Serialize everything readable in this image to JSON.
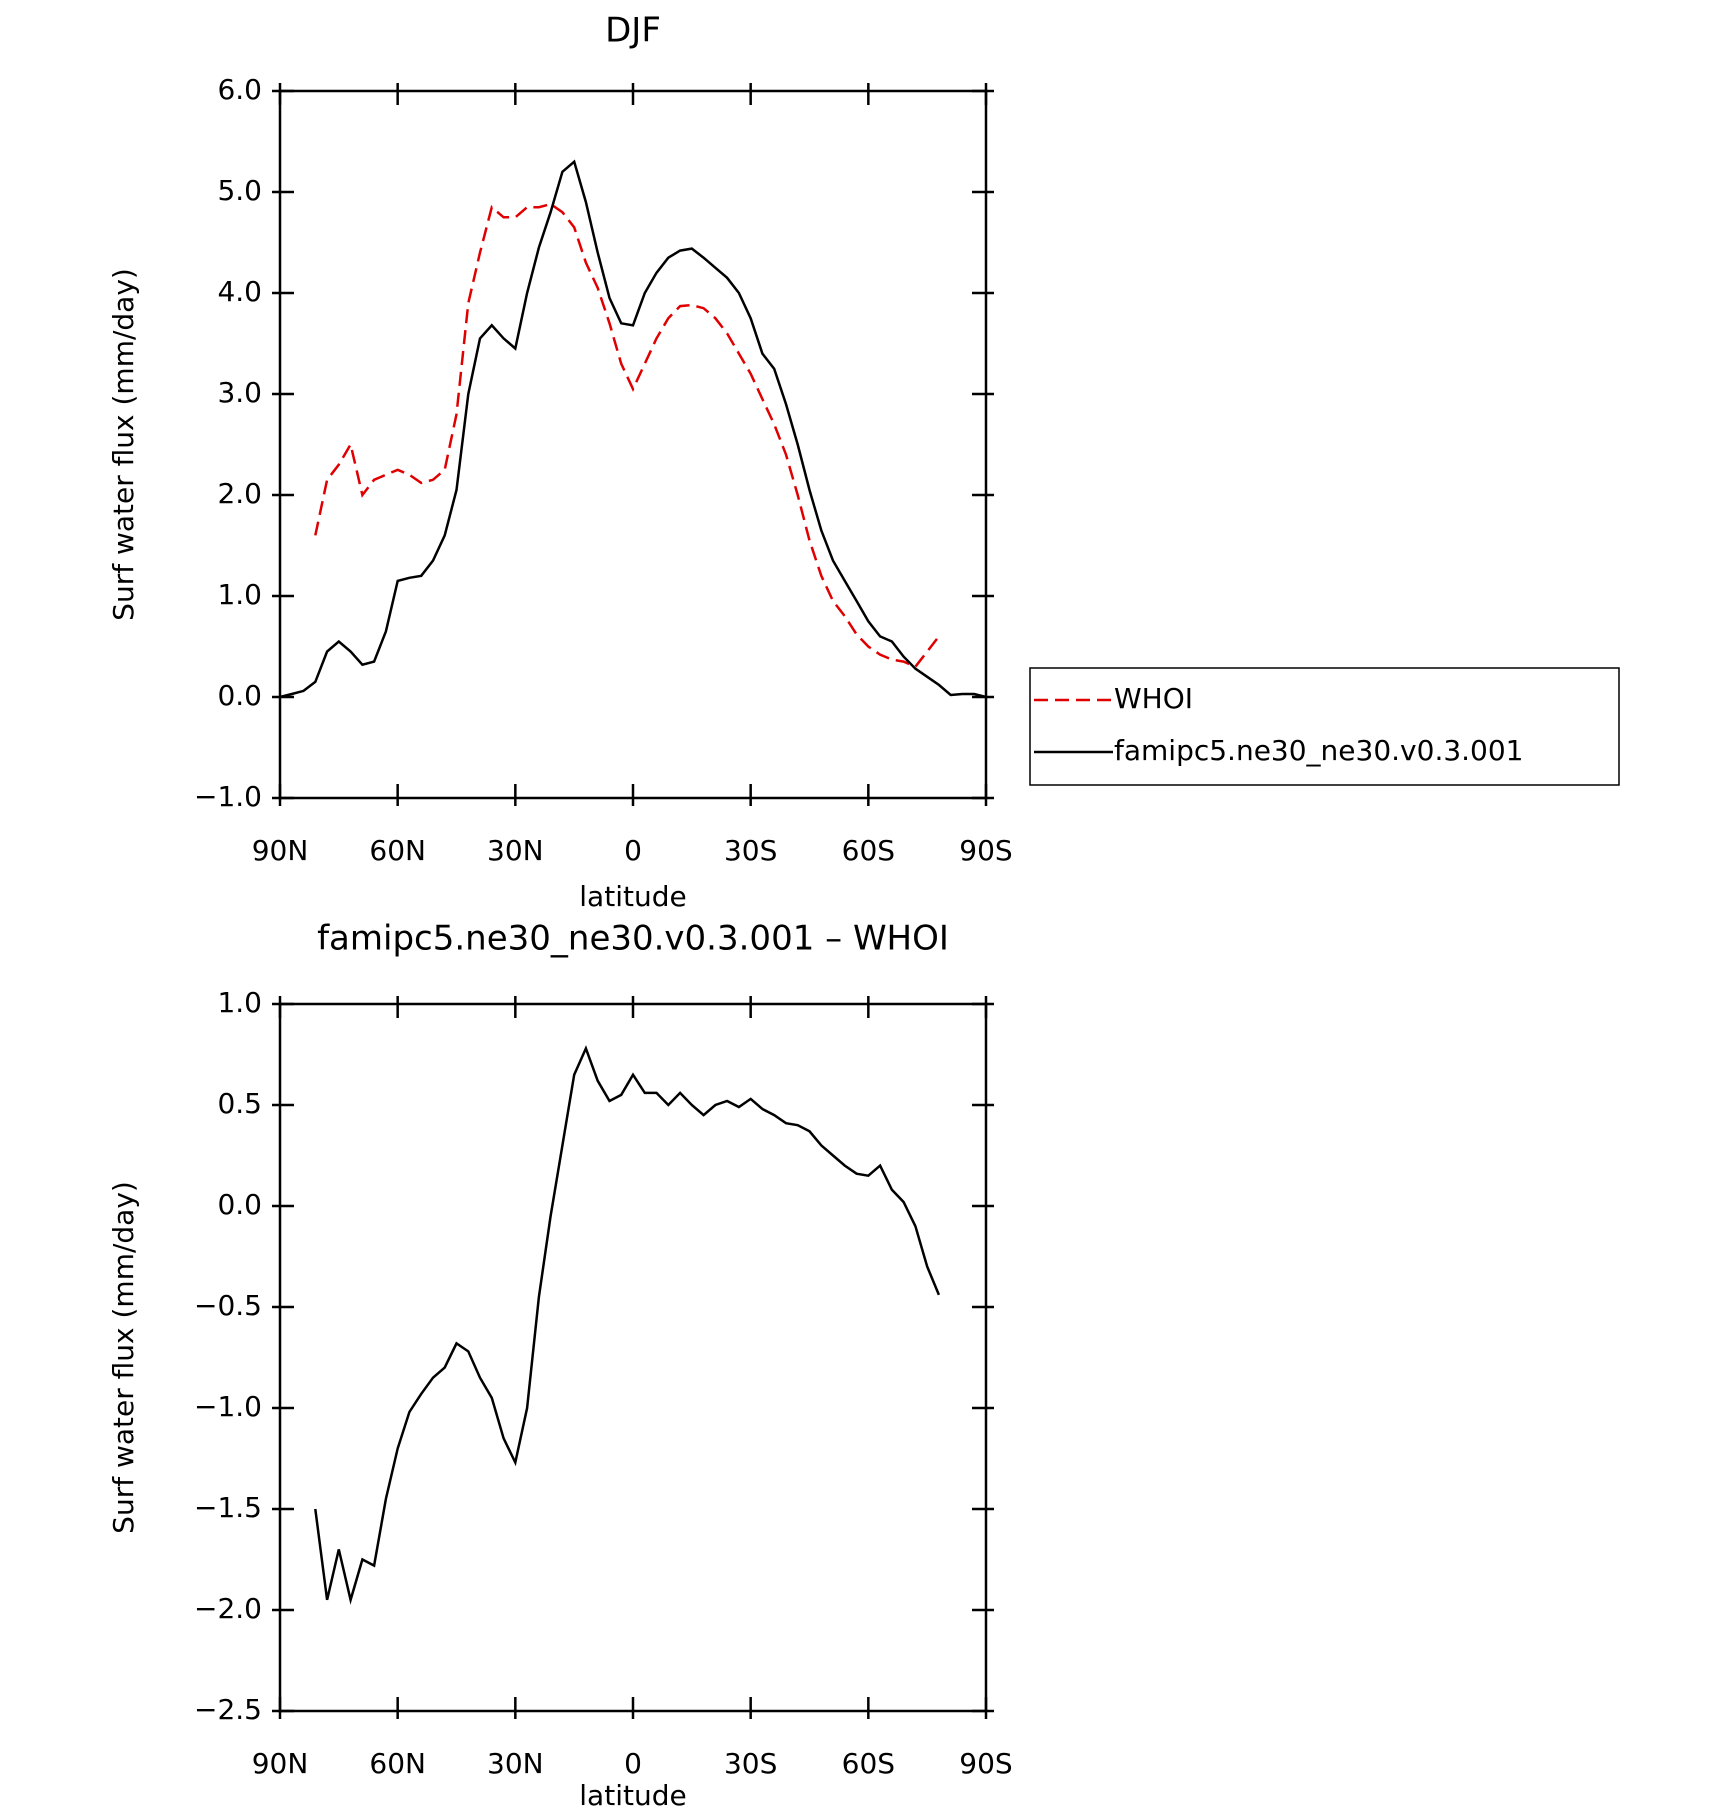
{
  "chart_data": [
    {
      "type": "line",
      "title": "DJF",
      "xlabel": "latitude",
      "ylabel": "Surf water flux (mm/day)",
      "x": [
        90,
        87,
        84,
        81,
        78,
        75,
        72,
        69,
        66,
        63,
        60,
        57,
        54,
        51,
        48,
        45,
        42,
        39,
        36,
        33,
        30,
        27,
        24,
        21,
        18,
        15,
        12,
        9,
        6,
        3,
        0,
        -3,
        -6,
        -9,
        -12,
        -15,
        -18,
        -21,
        -24,
        -27,
        -30,
        -33,
        -36,
        -39,
        -42,
        -45,
        -48,
        -51,
        -54,
        -57,
        -60,
        -63,
        -66,
        -69,
        -72,
        -75,
        -78,
        -81,
        -84,
        -87,
        -90
      ],
      "xlim": [
        90,
        -90
      ],
      "xticks": [
        {
          "value": 90,
          "label": "90N"
        },
        {
          "value": 60,
          "label": "60N"
        },
        {
          "value": 30,
          "label": "30N"
        },
        0,
        {
          "value": -30,
          "label": "30S"
        },
        {
          "value": -60,
          "label": "60S"
        },
        {
          "value": -90,
          "label": "90S"
        }
      ],
      "ylim": [
        -1,
        6
      ],
      "yticks": [
        {
          "value": -1,
          "label": "−1.0"
        },
        {
          "value": 0,
          "label": "0.0"
        },
        {
          "value": 1,
          "label": "1.0"
        },
        {
          "value": 2,
          "label": "2.0"
        },
        {
          "value": 3,
          "label": "3.0"
        },
        {
          "value": 4,
          "label": "4.0"
        },
        {
          "value": 5,
          "label": "5.0"
        },
        {
          "value": 6,
          "label": "6.0"
        }
      ],
      "legend": "right",
      "series": [
        {
          "name": "WHOI",
          "color": "#e00000",
          "linestyle": "dashed",
          "values": [
            null,
            null,
            null,
            1.6,
            2.15,
            2.3,
            2.5,
            2.0,
            2.15,
            2.2,
            2.25,
            2.2,
            2.12,
            2.15,
            2.25,
            2.8,
            3.9,
            4.4,
            4.85,
            4.75,
            4.75,
            4.85,
            4.85,
            4.88,
            4.8,
            4.65,
            4.3,
            4.05,
            3.7,
            3.3,
            3.05,
            3.3,
            3.55,
            3.75,
            3.87,
            3.88,
            3.85,
            3.75,
            3.6,
            3.4,
            3.2,
            2.95,
            2.7,
            2.4,
            2.0,
            1.55,
            1.2,
            0.95,
            0.8,
            0.62,
            0.5,
            0.42,
            0.37,
            0.35,
            0.3,
            0.45,
            0.6,
            null,
            null,
            null,
            null
          ]
        },
        {
          "name": "famipc5.ne30_ne30.v0.3.001",
          "color": "#000000",
          "linestyle": "solid",
          "values": [
            0.0,
            0.03,
            0.06,
            0.15,
            0.45,
            0.55,
            0.45,
            0.32,
            0.35,
            0.65,
            1.15,
            1.18,
            1.2,
            1.35,
            1.6,
            2.05,
            3.0,
            3.55,
            3.68,
            3.55,
            3.45,
            4.0,
            4.45,
            4.8,
            5.2,
            5.3,
            4.9,
            4.4,
            3.95,
            3.7,
            3.68,
            4.0,
            4.2,
            4.35,
            4.42,
            4.44,
            4.35,
            4.25,
            4.15,
            4.0,
            3.75,
            3.4,
            3.25,
            2.9,
            2.5,
            2.05,
            1.65,
            1.35,
            1.15,
            0.95,
            0.75,
            0.6,
            0.55,
            0.4,
            0.28,
            0.2,
            0.12,
            0.02,
            0.03,
            0.03,
            0.0
          ]
        }
      ]
    },
    {
      "type": "line",
      "title": "famipc5.ne30_ne30.v0.3.001 – WHOI",
      "xlabel": "latitude",
      "ylabel": "Surf water flux (mm/day)",
      "x": [
        90,
        87,
        84,
        81,
        78,
        75,
        72,
        69,
        66,
        63,
        60,
        57,
        54,
        51,
        48,
        45,
        42,
        39,
        36,
        33,
        30,
        27,
        24,
        21,
        18,
        15,
        12,
        9,
        6,
        3,
        0,
        -3,
        -6,
        -9,
        -12,
        -15,
        -18,
        -21,
        -24,
        -27,
        -30,
        -33,
        -36,
        -39,
        -42,
        -45,
        -48,
        -51,
        -54,
        -57,
        -60,
        -63,
        -66,
        -69,
        -72,
        -75,
        -78,
        -81,
        -84,
        -87,
        -90
      ],
      "xlim": [
        90,
        -90
      ],
      "xticks": [
        {
          "value": 90,
          "label": "90N"
        },
        {
          "value": 60,
          "label": "60N"
        },
        {
          "value": 30,
          "label": "30N"
        },
        0,
        {
          "value": -30,
          "label": "30S"
        },
        {
          "value": -60,
          "label": "60S"
        },
        {
          "value": -90,
          "label": "90S"
        }
      ],
      "ylim": [
        -2.5,
        1
      ],
      "yticks": [
        {
          "value": -2.5,
          "label": "−2.5"
        },
        {
          "value": -2,
          "label": "−2.0"
        },
        {
          "value": -1.5,
          "label": "−1.5"
        },
        {
          "value": -1,
          "label": "−1.0"
        },
        {
          "value": -0.5,
          "label": "−0.5"
        },
        {
          "value": 0,
          "label": "0.0"
        },
        {
          "value": 0.5,
          "label": "0.5"
        },
        {
          "value": 1,
          "label": "1.0"
        }
      ],
      "color": "#000000",
      "values": [
        null,
        null,
        null,
        -1.5,
        -1.95,
        -1.7,
        -1.95,
        -1.75,
        -1.78,
        -1.45,
        -1.2,
        -1.02,
        -0.93,
        -0.85,
        -0.8,
        -0.68,
        -0.72,
        -0.85,
        -0.95,
        -1.15,
        -1.27,
        -1.0,
        -0.45,
        -0.05,
        0.3,
        0.65,
        0.78,
        0.62,
        0.52,
        0.55,
        0.65,
        0.56,
        0.56,
        0.5,
        0.56,
        0.5,
        0.45,
        0.5,
        0.52,
        0.49,
        0.53,
        0.48,
        0.45,
        0.41,
        0.4,
        0.37,
        0.3,
        0.25,
        0.2,
        0.16,
        0.15,
        0.2,
        0.08,
        0.02,
        -0.1,
        -0.3,
        -0.44,
        null,
        null,
        null,
        null
      ]
    }
  ]
}
